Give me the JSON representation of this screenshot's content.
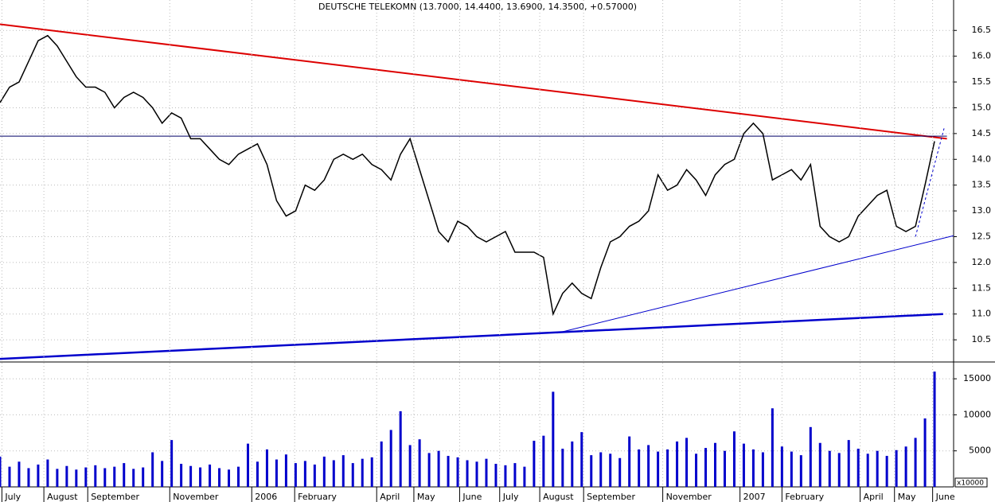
{
  "chart_data": [
    {
      "type": "line",
      "title": "DEUTSCHE TELEKOMN (13.7000, 14.4400, 13.6900, 14.3500, +0.57000)",
      "series": [
        {
          "color": "#000000",
          "values": [
            15.1,
            15.4,
            15.5,
            15.9,
            16.3,
            16.4,
            16.2,
            15.9,
            15.6,
            15.4,
            15.4,
            15.3,
            15.0,
            15.2,
            15.3,
            15.2,
            15.0,
            14.7,
            14.9,
            14.8,
            14.4,
            14.4,
            14.2,
            14.0,
            13.9,
            14.1,
            14.2,
            14.3,
            13.9,
            13.2,
            12.9,
            13.0,
            13.5,
            13.4,
            13.6,
            14.0,
            14.1,
            14.0,
            14.1,
            13.9,
            13.8,
            13.6,
            14.1,
            14.4,
            13.8,
            13.2,
            12.6,
            12.4,
            12.8,
            12.7,
            12.5,
            12.4,
            12.5,
            12.6,
            12.2,
            12.2,
            12.2,
            12.1,
            11.0,
            11.4,
            11.6,
            11.4,
            11.3,
            11.9,
            12.4,
            12.5,
            12.7,
            12.8,
            13.0,
            13.7,
            13.4,
            13.5,
            13.8,
            13.6,
            13.3,
            13.7,
            13.9,
            14.0,
            14.5,
            14.7,
            14.5,
            13.6,
            13.7,
            13.8,
            13.6,
            13.9,
            12.7,
            12.5,
            12.4,
            12.5,
            12.9,
            13.1,
            13.3,
            13.4,
            12.7,
            12.6,
            12.7,
            13.5,
            14.35
          ]
        }
      ],
      "trend_lines": [
        {
          "color": "#dd0000",
          "width": 2,
          "dash": false,
          "x": [
            0,
            99.3
          ],
          "y": [
            16.62,
            14.4
          ]
        },
        {
          "color": "#0000cc",
          "width": 2.5,
          "dash": false,
          "x": [
            0,
            98.9
          ],
          "y": [
            10.13,
            11.0
          ]
        },
        {
          "color": "#0000cc",
          "width": 1,
          "dash": false,
          "x": [
            58.4,
            100
          ],
          "y": [
            10.63,
            12.52
          ]
        },
        {
          "color": "#000066",
          "width": 1,
          "dash": false,
          "x": [
            0,
            99.3
          ],
          "y": [
            14.45,
            14.45
          ]
        },
        {
          "color": "#0000cc",
          "width": 1,
          "dash": true,
          "x": [
            96,
            99
          ],
          "y": [
            12.5,
            14.6
          ]
        }
      ],
      "xlim": [
        0,
        100
      ],
      "ylim": [
        10.07,
        17.09
      ],
      "yticks": [
        10.5,
        {
          "value": 11,
          "label": "11.0"
        },
        11.5,
        {
          "value": 12,
          "label": "12.0"
        },
        12.5,
        {
          "value": 13,
          "label": "13.0"
        },
        13.5,
        {
          "value": 14,
          "label": "14.0"
        },
        14.5,
        {
          "value": 15,
          "label": "15.0"
        },
        15.5,
        {
          "value": 16,
          "label": "16.0"
        },
        16.5
      ]
    },
    {
      "type": "bar",
      "color": "#0000cc",
      "values": [
        4200,
        2800,
        3500,
        2600,
        3100,
        3800,
        2500,
        2900,
        2400,
        2700,
        3000,
        2600,
        2800,
        3300,
        2500,
        2700,
        4800,
        3600,
        6500,
        3200,
        2900,
        2700,
        3100,
        2600,
        2400,
        2800,
        6000,
        3500,
        5200,
        3800,
        4500,
        3300,
        3600,
        3100,
        4200,
        3700,
        4400,
        3300,
        3900,
        4100,
        6300,
        7900,
        10500,
        5800,
        6600,
        4700,
        5000,
        4300,
        4100,
        3700,
        3500,
        3900,
        3200,
        3000,
        3300,
        2800,
        6400,
        7100,
        13200,
        5300,
        6300,
        7600,
        4400,
        4800,
        4600,
        4000,
        7000,
        5200,
        5800,
        4900,
        5200,
        6300,
        6800,
        4600,
        5400,
        6100,
        5000,
        7700,
        6000,
        5200,
        4800,
        10900,
        5600,
        4900,
        4400,
        8300,
        6100,
        5000,
        4700,
        6500,
        5300,
        4600,
        5000,
        4300,
        5100,
        5600,
        6800,
        9500,
        16000
      ],
      "unit_label": "x10000",
      "xlim": [
        0,
        100
      ],
      "ylim": [
        0,
        17000
      ],
      "yticks": [
        5000,
        10000,
        15000
      ],
      "xticks": [
        {
          "value": 0.2,
          "label": "July"
        },
        {
          "value": 4.6,
          "label": "August"
        },
        {
          "value": 9.2,
          "label": "September"
        },
        {
          "value": 17.8,
          "label": "November"
        },
        {
          "value": 26.4,
          "label": "2006"
        },
        {
          "value": 30.9,
          "label": "February"
        },
        {
          "value": 39.5,
          "label": "April"
        },
        {
          "value": 43.4,
          "label": "May"
        },
        {
          "value": 48.2,
          "label": "June"
        },
        {
          "value": 52.4,
          "label": "July"
        },
        {
          "value": 56.6,
          "label": "August"
        },
        {
          "value": 61.2,
          "label": "September"
        },
        {
          "value": 69.5,
          "label": "November"
        },
        {
          "value": 77.6,
          "label": "2007"
        },
        {
          "value": 82,
          "label": "February"
        },
        {
          "value": 90.2,
          "label": "April"
        },
        {
          "value": 93.8,
          "label": "May"
        },
        {
          "value": 97.8,
          "label": "June"
        }
      ]
    }
  ]
}
